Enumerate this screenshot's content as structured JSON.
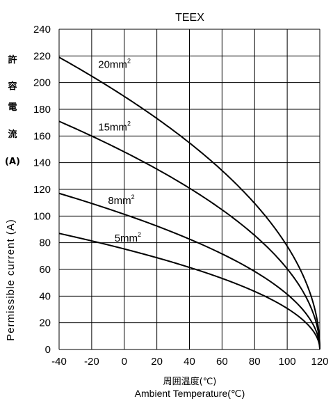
{
  "chart_data": {
    "type": "line",
    "title": "TEEX",
    "ylabel_ja": "許容電流(A)",
    "ylabel_ja_chars": [
      "許",
      "容",
      "電",
      "流",
      "(A)"
    ],
    "ylabel": "Permissible current (A)",
    "xlabel_ja": "周囲温度(℃)",
    "xlabel": "Ambient Temperature(℃)",
    "xlim": [
      -40,
      120
    ],
    "ylim": [
      0,
      240
    ],
    "xticks": [
      -40,
      -20,
      0,
      20,
      40,
      60,
      80,
      100,
      120
    ],
    "yticks": [
      0,
      20,
      40,
      60,
      80,
      100,
      120,
      140,
      160,
      180,
      200,
      220,
      240
    ],
    "grid": true,
    "series": [
      {
        "name": "20mm",
        "name_sup": "2",
        "I0": 219,
        "label_x": -16,
        "label_y": 211
      },
      {
        "name": "15mm",
        "name_sup": "2",
        "I0": 171,
        "label_x": -16,
        "label_y": 164
      },
      {
        "name": "8mm",
        "name_sup": "2",
        "I0": 117,
        "label_x": -10,
        "label_y": 109
      },
      {
        "name": "5mm",
        "name_sup": "2",
        "I0": 87,
        "label_x": -6,
        "label_y": 81
      }
    ],
    "T0": -40,
    "Tmax": 120
  }
}
